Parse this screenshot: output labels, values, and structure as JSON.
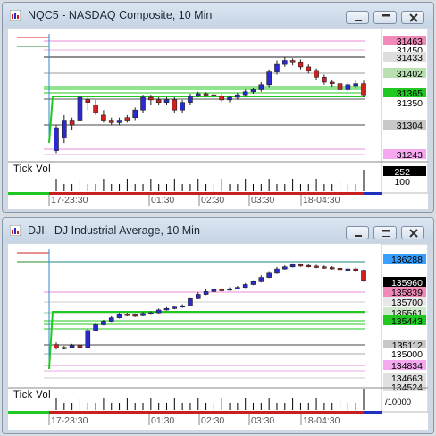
{
  "windows": [
    {
      "title": "NQC5 - NASDAQ Composite, 10 Min",
      "price_levels": [
        {
          "label": "31463",
          "bg": "#f08ab8",
          "fg": "#000000"
        },
        {
          "label": "31450",
          "bg": "#ffffff",
          "fg": "#000000"
        },
        {
          "label": "31433",
          "bg": "#dddddd",
          "fg": "#000000"
        },
        {
          "label": "31402",
          "bg": "#b8e0b0",
          "fg": "#000000"
        },
        {
          "label": "31365",
          "bg": "#22c822",
          "fg": "#000000"
        },
        {
          "label": "31304",
          "bg": "#c8c8c8",
          "fg": "#000000"
        },
        {
          "label": "31243",
          "bg": "#f4a8f0",
          "fg": "#000000"
        }
      ],
      "hidden_label": "31350",
      "indicator": {
        "label": "Tick Vol",
        "value": "252",
        "value2": "100"
      },
      "time_labels": [
        "17-23:30",
        "01:30",
        "02:30",
        "03:30",
        "18-04:30"
      ],
      "scale_min": 31220,
      "scale_max": 31470,
      "candles": [
        [
          31240,
          31285,
          31235,
          31290
        ],
        [
          31265,
          31300,
          31255,
          31310
        ],
        [
          31300,
          31290,
          31280,
          31305
        ],
        [
          31300,
          31345,
          31295,
          31350
        ],
        [
          31340,
          31335,
          31320,
          31345
        ],
        [
          31330,
          31315,
          31310,
          31340
        ],
        [
          31310,
          31300,
          31295,
          31320
        ],
        [
          31300,
          31295,
          31290,
          31305
        ],
        [
          31295,
          31300,
          31290,
          31305
        ],
        [
          31305,
          31300,
          31295,
          31310
        ],
        [
          31305,
          31320,
          31300,
          31325
        ],
        [
          31320,
          31345,
          31315,
          31350
        ],
        [
          31345,
          31340,
          31330,
          31350
        ],
        [
          31340,
          31335,
          31330,
          31345
        ],
        [
          31335,
          31340,
          31330,
          31345
        ],
        [
          31340,
          31320,
          31315,
          31345
        ],
        [
          31320,
          31335,
          31315,
          31340
        ],
        [
          31335,
          31348,
          31330,
          31352
        ],
        [
          31348,
          31352,
          31345,
          31356
        ],
        [
          31352,
          31350,
          31346,
          31355
        ],
        [
          31350,
          31348,
          31344,
          31354
        ],
        [
          31348,
          31340,
          31336,
          31352
        ],
        [
          31340,
          31345,
          31335,
          31348
        ],
        [
          31345,
          31350,
          31340,
          31354
        ],
        [
          31350,
          31356,
          31346,
          31360
        ],
        [
          31356,
          31360,
          31352,
          31364
        ],
        [
          31360,
          31370,
          31356,
          31375
        ],
        [
          31370,
          31395,
          31365,
          31400
        ],
        [
          31395,
          31410,
          31390,
          31418
        ],
        [
          31410,
          31418,
          31405,
          31425
        ],
        [
          31418,
          31415,
          31408,
          31422
        ],
        [
          31415,
          31405,
          31400,
          31420
        ],
        [
          31405,
          31398,
          31392,
          31410
        ],
        [
          31398,
          31385,
          31380,
          31402
        ],
        [
          31385,
          31375,
          31370,
          31390
        ],
        [
          31375,
          31372,
          31366,
          31380
        ],
        [
          31372,
          31360,
          31355,
          31376
        ],
        [
          31360,
          31370,
          31356,
          31375
        ],
        [
          31368,
          31372,
          31362,
          31380
        ],
        [
          31372,
          31350,
          31345,
          31378
        ]
      ]
    },
    {
      "title": "DJI - DJ Industrial Average, 10 Min",
      "price_levels": [
        {
          "label": "136288",
          "bg": "#3aa0ff",
          "fg": "#000000"
        },
        {
          "label": "135960",
          "bg": "#000000",
          "fg": "#ffffff"
        },
        {
          "label": "135839",
          "bg": "#f08ab8",
          "fg": "#000000"
        },
        {
          "label": "135700",
          "bg": "#e8e8e8",
          "fg": "#000000"
        },
        {
          "label": "135561",
          "bg": "#d0e8cc",
          "fg": "#000000"
        },
        {
          "label": "135443",
          "bg": "#22c822",
          "fg": "#000000"
        },
        {
          "label": "135112",
          "bg": "#c8c8c8",
          "fg": "#000000"
        },
        {
          "label": "135000",
          "bg": "#ffffff",
          "fg": "#000000"
        },
        {
          "label": "134834",
          "bg": "#f4a8f0",
          "fg": "#000000"
        },
        {
          "label": "134663",
          "bg": "#e0e0e0",
          "fg": "#000000"
        },
        {
          "label": "134524",
          "bg": "#e0e0e0",
          "fg": "#000000"
        }
      ],
      "indicator": {
        "label": "Tick Vol",
        "value": "/10000"
      },
      "time_labels": [
        "17-23:30",
        "01:30",
        "02:30",
        "03:30",
        "18-04:30"
      ],
      "scale_min": 134450,
      "scale_max": 136400,
      "candles": [
        [
          135050,
          135000,
          134980,
          135080
        ],
        [
          135000,
          135010,
          134980,
          135030
        ],
        [
          135010,
          135040,
          135000,
          135060
        ],
        [
          135040,
          135010,
          134980,
          135060
        ],
        [
          135010,
          135250,
          135000,
          135280
        ],
        [
          135250,
          135330,
          135240,
          135350
        ],
        [
          135330,
          135380,
          135320,
          135400
        ],
        [
          135380,
          135430,
          135370,
          135450
        ],
        [
          135430,
          135480,
          135420,
          135500
        ],
        [
          135480,
          135470,
          135450,
          135500
        ],
        [
          135470,
          135460,
          135440,
          135490
        ],
        [
          135460,
          135490,
          135450,
          135510
        ],
        [
          135490,
          135500,
          135470,
          135520
        ],
        [
          135500,
          135540,
          135490,
          135560
        ],
        [
          135540,
          135560,
          135530,
          135580
        ],
        [
          135560,
          135580,
          135550,
          135600
        ],
        [
          135580,
          135600,
          135570,
          135620
        ],
        [
          135600,
          135700,
          135590,
          135720
        ],
        [
          135700,
          135760,
          135690,
          135790
        ],
        [
          135760,
          135800,
          135750,
          135830
        ],
        [
          135800,
          135830,
          135790,
          135850
        ],
        [
          135830,
          135820,
          135800,
          135850
        ],
        [
          135820,
          135840,
          135810,
          135860
        ],
        [
          135840,
          135860,
          135830,
          135880
        ],
        [
          135860,
          135900,
          135850,
          135920
        ],
        [
          135900,
          135940,
          135890,
          135960
        ],
        [
          135940,
          136000,
          135930,
          136030
        ],
        [
          136000,
          136060,
          135990,
          136090
        ],
        [
          136060,
          136120,
          136050,
          136150
        ],
        [
          136120,
          136150,
          136110,
          136170
        ],
        [
          136150,
          136180,
          136140,
          136200
        ],
        [
          136180,
          136170,
          136150,
          136200
        ],
        [
          136170,
          136160,
          136140,
          136190
        ],
        [
          136160,
          136150,
          136130,
          136180
        ],
        [
          136150,
          136140,
          136120,
          136170
        ],
        [
          136140,
          136130,
          136110,
          136160
        ],
        [
          136130,
          136110,
          136090,
          136150
        ],
        [
          136110,
          136120,
          136090,
          136140
        ],
        [
          136120,
          136100,
          136080,
          136140
        ],
        [
          136100,
          135960,
          135940,
          136110
        ]
      ]
    }
  ]
}
